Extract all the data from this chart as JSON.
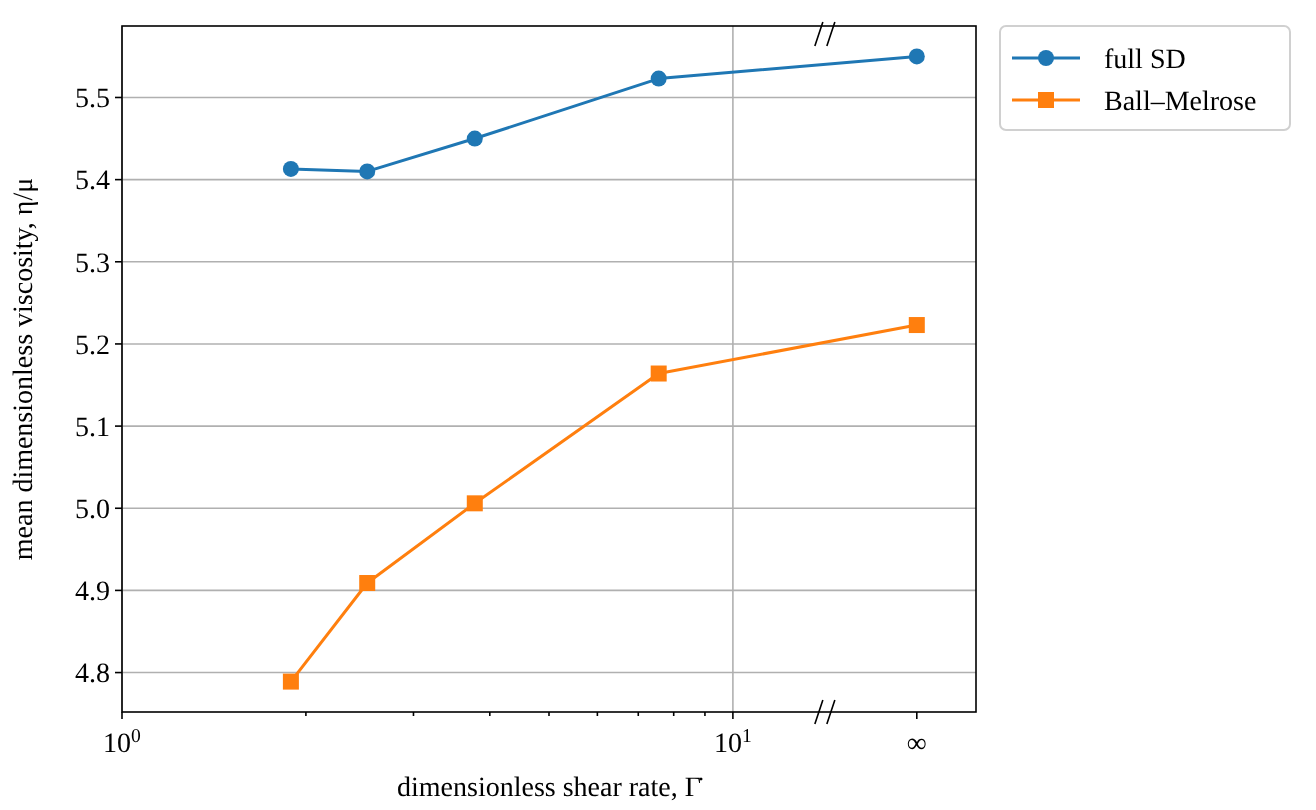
{
  "chart_data": {
    "type": "line",
    "xlabel": "dimensionless shear rate, Γ̇",
    "ylabel": "mean dimensionless viscosity, η/μ",
    "log": "x",
    "x": [
      1.89,
      2.52,
      3.78,
      7.56,
      20
    ],
    "series": [
      {
        "name": "full SD",
        "color": "#1f77b4",
        "marker": "circle",
        "values": [
          5.413,
          5.41,
          5.45,
          5.523,
          5.55
        ]
      },
      {
        "name": "Ball–Melrose",
        "color": "#ff7f0e",
        "marker": "square",
        "values": [
          4.789,
          4.909,
          5.006,
          5.164,
          5.223
        ]
      }
    ],
    "xlim": [
      1,
      25
    ],
    "xticks": [
      {
        "value": 1,
        "label": "10$^{0}$"
      },
      {
        "value": 2,
        "label": null
      },
      {
        "value": 3,
        "label": null
      },
      {
        "value": 4,
        "label": null
      },
      {
        "value": 5,
        "label": null
      },
      {
        "value": 6,
        "label": null
      },
      {
        "value": 7,
        "label": null
      },
      {
        "value": 8,
        "label": null
      },
      {
        "value": 9,
        "label": null
      },
      {
        "value": 10,
        "label": "10$^{1}$"
      },
      {
        "value": 20,
        "label": "∞"
      }
    ],
    "ylim": [
      4.752,
      5.587
    ],
    "yticks": [
      4.8,
      4.9,
      {
        "value": 5,
        "label": "5.0"
      },
      5.1,
      5.2,
      5.3,
      5.4,
      5.5
    ],
    "grid": true,
    "legend": "top right",
    "line_style": "solid"
  }
}
